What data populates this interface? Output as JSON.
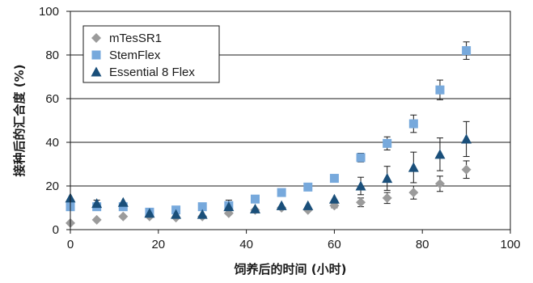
{
  "chart_data": {
    "type": "scatter",
    "xlabel": "饲养后的时间 (小时)",
    "ylabel": "接种后的汇合度 (%)",
    "xlim": [
      0,
      100
    ],
    "ylim": [
      0,
      100
    ],
    "xticks": [
      0,
      20,
      40,
      60,
      80,
      100
    ],
    "yticks": [
      0,
      20,
      40,
      60,
      80,
      100
    ],
    "grid": "horizontal",
    "legend_position": "top-left",
    "series": [
      {
        "name": "mTesSR1",
        "marker": "diamond",
        "color": "#9b9b9b",
        "x": [
          0,
          6,
          12,
          18,
          24,
          30,
          36,
          42,
          48,
          54,
          60,
          66,
          72,
          78,
          84,
          90
        ],
        "y": [
          3,
          4.5,
          6,
          6,
          5.5,
          6,
          7.5,
          9,
          10,
          9,
          11,
          12.5,
          14.5,
          17,
          21,
          27.5
        ],
        "err": [
          0,
          0,
          0,
          0,
          0,
          0,
          0,
          0,
          0,
          0,
          1,
          2,
          2.5,
          3,
          3.5,
          4
        ]
      },
      {
        "name": "StemFlex",
        "marker": "square",
        "color": "#77a9dc",
        "x": [
          0,
          6,
          12,
          18,
          24,
          30,
          36,
          42,
          48,
          54,
          60,
          66,
          72,
          78,
          84,
          90
        ],
        "y": [
          10.5,
          10.5,
          10.5,
          8,
          9,
          10.5,
          11,
          14,
          17,
          19.5,
          23.5,
          33,
          39.5,
          48.5,
          64,
          82
        ],
        "err": [
          0,
          0,
          0,
          0,
          0,
          0,
          0,
          0,
          0,
          0,
          0,
          2,
          3,
          4,
          4.5,
          4
        ]
      },
      {
        "name": "Essential 8 Flex",
        "marker": "triangle",
        "color": "#1a4f7a",
        "x": [
          0,
          6,
          12,
          18,
          24,
          30,
          36,
          42,
          48,
          54,
          60,
          66,
          72,
          78,
          84,
          90
        ],
        "y": [
          14.5,
          12,
          12.5,
          7.5,
          7,
          7,
          10.5,
          9.5,
          11,
          11,
          14,
          20,
          23.5,
          28.5,
          34.5,
          41.5
        ],
        "err": [
          0,
          1.5,
          0,
          0,
          0,
          0,
          3,
          0,
          0,
          0,
          0,
          4,
          5.5,
          7,
          7.5,
          8
        ]
      }
    ]
  }
}
